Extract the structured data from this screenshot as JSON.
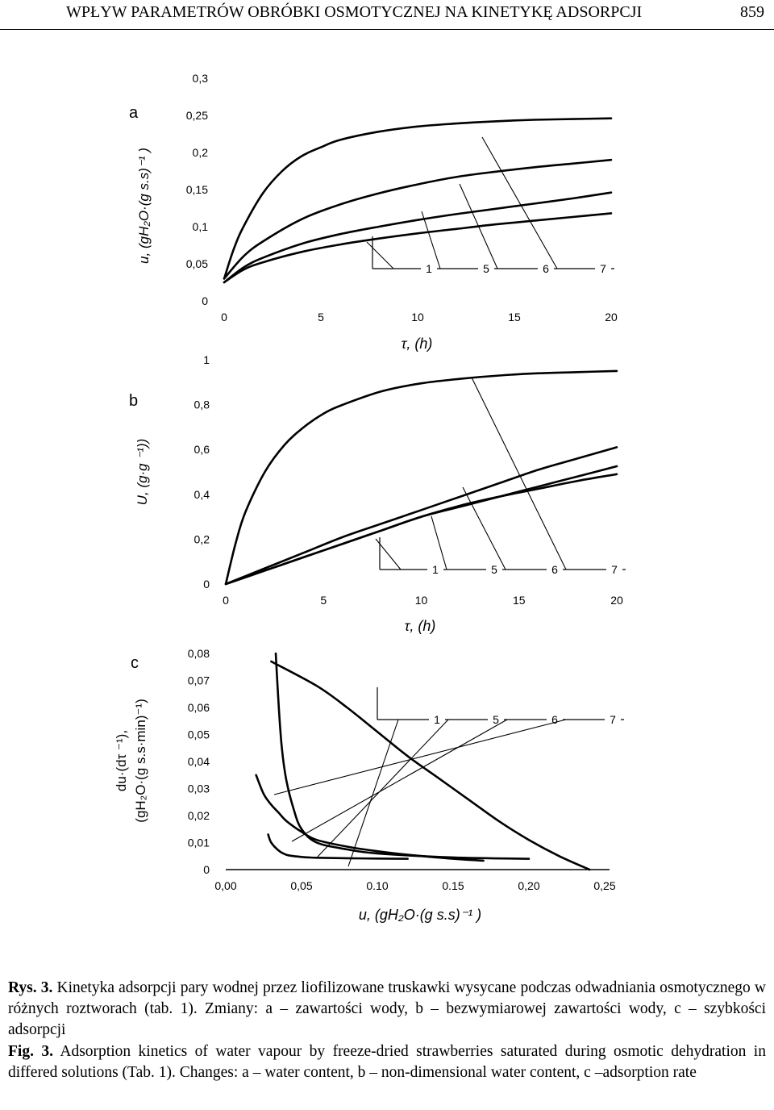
{
  "header": {
    "title": "WPŁYW PARAMETRÓW OBRÓBKI OSMOTYCZNEJ NA KINETYKĘ ADSORPCJI",
    "page_number": "859"
  },
  "charts": [
    {
      "panel_letter": "a",
      "ylabel": "u, (gH₂O·(g s.s)⁻¹ )",
      "xlabel": "τ, (h)",
      "yticks": [
        "0",
        "0,05",
        "0,1",
        "0,15",
        "0,2",
        "0,25",
        "0,3"
      ],
      "xticks": [
        "0",
        "5",
        "10",
        "15",
        "20"
      ],
      "legend": [
        "1",
        "5",
        "6",
        "7"
      ]
    },
    {
      "panel_letter": "b",
      "ylabel": "U, (g·g ⁻¹))",
      "xlabel": "τ, (h)",
      "yticks": [
        "0",
        "0,2",
        "0,4",
        "0,6",
        "0,8",
        "1"
      ],
      "xticks": [
        "0",
        "5",
        "10",
        "15",
        "20"
      ],
      "legend": [
        "1",
        "5",
        "6",
        "7"
      ]
    },
    {
      "panel_letter": "c",
      "ylabel_line1": "du·(dτ ⁻¹),",
      "ylabel_line2": "(gH₂O·(g s.s·min)⁻¹)",
      "xlabel": "u, (gH₂O·(g s.s)⁻¹ )",
      "yticks": [
        "0",
        "0,01",
        "0,02",
        "0,03",
        "0,04",
        "0,05",
        "0,06",
        "0,07",
        "0,08"
      ],
      "xticks": [
        "0,00",
        "0,05",
        "0.10",
        "0.15",
        "0,20",
        "0,25"
      ],
      "legend": [
        "1",
        "5",
        "6",
        "7"
      ]
    }
  ],
  "chart_data": [
    {
      "type": "line",
      "xlabel": "τ, (h)",
      "ylabel": "u, (gH₂O·(g s.s)⁻¹ )",
      "xlim": [
        0,
        20
      ],
      "ylim": [
        0,
        0.3
      ],
      "grid": false,
      "legend_placement": "bottom-right",
      "series": [
        {
          "name": "1",
          "x": [
            0,
            0.5,
            1,
            2,
            3,
            4,
            5,
            6,
            8,
            10,
            12,
            14,
            16,
            18,
            20
          ],
          "values": [
            0.03,
            0.07,
            0.1,
            0.145,
            0.175,
            0.195,
            0.207,
            0.217,
            0.228,
            0.235,
            0.239,
            0.242,
            0.244,
            0.245,
            0.246
          ]
        },
        {
          "name": "5",
          "x": [
            0,
            1,
            2,
            4,
            6,
            8,
            10,
            12,
            14,
            16,
            18,
            20
          ],
          "values": [
            0.03,
            0.06,
            0.08,
            0.11,
            0.13,
            0.145,
            0.157,
            0.167,
            0.174,
            0.18,
            0.185,
            0.19
          ]
        },
        {
          "name": "6",
          "x": [
            0,
            1,
            2,
            4,
            6,
            8,
            10,
            12,
            14,
            16,
            18,
            20
          ],
          "values": [
            0.025,
            0.045,
            0.058,
            0.077,
            0.09,
            0.1,
            0.109,
            0.117,
            0.124,
            0.131,
            0.138,
            0.146
          ]
        },
        {
          "name": "7",
          "x": [
            0,
            1,
            2,
            4,
            6,
            8,
            10,
            12,
            14,
            16,
            18,
            20
          ],
          "values": [
            0.025,
            0.042,
            0.052,
            0.066,
            0.076,
            0.084,
            0.091,
            0.097,
            0.103,
            0.108,
            0.113,
            0.118
          ]
        }
      ]
    },
    {
      "type": "line",
      "xlabel": "τ, (h)",
      "ylabel": "U, (g·g ⁻¹))",
      "xlim": [
        0,
        20
      ],
      "ylim": [
        0,
        1
      ],
      "grid": false,
      "legend_placement": "bottom-right",
      "series": [
        {
          "name": "1",
          "x": [
            0,
            0.5,
            1,
            2,
            3,
            4,
            5,
            6,
            8,
            10,
            12,
            14,
            16,
            18,
            20
          ],
          "values": [
            0,
            0.18,
            0.32,
            0.5,
            0.62,
            0.7,
            0.76,
            0.8,
            0.86,
            0.895,
            0.915,
            0.93,
            0.94,
            0.945,
            0.95
          ]
        },
        {
          "name": "5",
          "x": [
            0,
            2,
            4,
            6,
            8,
            10,
            12,
            14,
            16,
            18,
            20
          ],
          "values": [
            0,
            0.07,
            0.14,
            0.21,
            0.27,
            0.33,
            0.39,
            0.45,
            0.51,
            0.56,
            0.61
          ]
        },
        {
          "name": "6",
          "x": [
            0,
            2,
            4,
            6,
            8,
            10,
            12,
            14,
            16,
            18,
            20
          ],
          "values": [
            0,
            0.06,
            0.12,
            0.18,
            0.24,
            0.3,
            0.345,
            0.39,
            0.435,
            0.48,
            0.525
          ]
        },
        {
          "name": "7",
          "x": [
            0,
            2,
            4,
            6,
            8,
            10,
            12,
            14,
            16,
            18,
            20
          ],
          "values": [
            0,
            0.06,
            0.12,
            0.18,
            0.24,
            0.3,
            0.35,
            0.39,
            0.425,
            0.46,
            0.49
          ]
        }
      ]
    },
    {
      "type": "line",
      "xlabel": "u, (gH₂O·(g s.s)⁻¹ )",
      "ylabel": "du·(dτ ⁻¹), (gH₂O·(g s.s·min)⁻¹)",
      "xlim": [
        0,
        0.25
      ],
      "ylim": [
        0,
        0.08
      ],
      "grid": false,
      "legend_placement": "top-right",
      "series": [
        {
          "name": "1",
          "x": [
            0.03,
            0.06,
            0.08,
            0.1,
            0.12,
            0.14,
            0.16,
            0.18,
            0.2,
            0.22,
            0.24
          ],
          "values": [
            0.077,
            0.068,
            0.06,
            0.051,
            0.042,
            0.034,
            0.026,
            0.018,
            0.011,
            0.005,
            0.0
          ]
        },
        {
          "name": "5",
          "x": [
            0.028,
            0.03,
            0.035,
            0.04,
            0.045,
            0.05,
            0.055,
            0.06,
            0.08,
            0.1,
            0.12
          ],
          "values": [
            0.013,
            0.01,
            0.007,
            0.0055,
            0.005,
            0.0047,
            0.0045,
            0.0044,
            0.0042,
            0.0041,
            0.004
          ]
        },
        {
          "name": "6",
          "x": [
            0.02,
            0.025,
            0.03,
            0.035,
            0.04,
            0.05,
            0.06,
            0.08,
            0.1,
            0.12,
            0.15,
            0.17
          ],
          "values": [
            0.035,
            0.028,
            0.024,
            0.021,
            0.018,
            0.014,
            0.011,
            0.0085,
            0.0068,
            0.0055,
            0.004,
            0.0033
          ]
        },
        {
          "name": "7",
          "x": [
            0.033,
            0.035,
            0.037,
            0.04,
            0.045,
            0.05,
            0.06,
            0.08,
            0.1,
            0.15,
            0.2
          ],
          "values": [
            0.08,
            0.06,
            0.045,
            0.033,
            0.022,
            0.015,
            0.01,
            0.0075,
            0.006,
            0.0045,
            0.004
          ]
        }
      ]
    }
  ],
  "caption": {
    "pl_label": "Rys. 3.",
    "pl_text": "Kinetyka adsorpcji pary wodnej przez liofilizowane truskawki wysycane podczas odwadniania osmotycznego w różnych roztworach  (tab. 1). Zmiany: a – zawartości wody, b – bezwymiarowej zawartości wody, c – szybkości adsorpcji",
    "en_label": "Fig. 3.",
    "en_text": "Adsorption kinetics of water vapour by freeze-dried strawberries saturated during osmotic dehydration in differed solutions (Tab. 1). Changes: a – water content, b – non-dimensional water content, c –adsorption rate"
  }
}
